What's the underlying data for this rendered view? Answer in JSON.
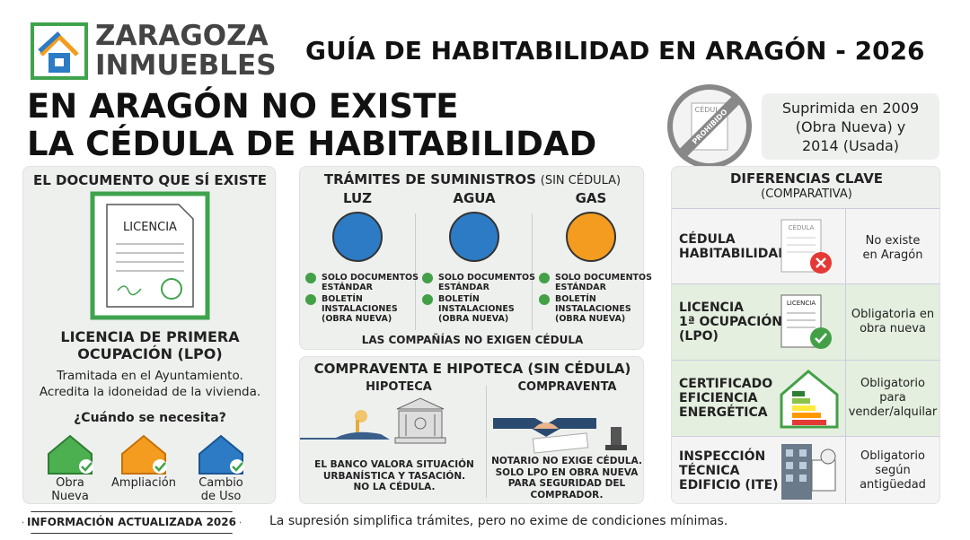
{
  "header": {
    "logo": [
      "ZARAGOZA",
      "INMUEBLES"
    ],
    "title": "GUÍA DE HABITABILIDAD EN ARAGÓN - 2026"
  },
  "headline": [
    "EN ARAGÓN NO EXISTE",
    "LA CÉDULA DE HABITABILIDAD"
  ],
  "stamp": {
    "doc": "CÉDULA",
    "label": "PROHIBIDO"
  },
  "note": [
    "Suprimida en 2009",
    "(Obra Nueva) y",
    "2014 (Usada)"
  ],
  "document_panel": {
    "title": "EL DOCUMENTO QUE SÍ EXISTE",
    "doc_label": "LICENCIA",
    "name": [
      "LICENCIA DE PRIMERA",
      "OCUPACIÓN (LPO)"
    ],
    "description": [
      "Tramitada en el Ayuntamiento.",
      "Acredita la idoneidad de la vivienda."
    ],
    "question": "¿Cuándo se necesita?",
    "cases": [
      [
        "Obra",
        "Nueva"
      ],
      [
        "Ampliación"
      ],
      [
        "Cambio",
        "de Uso"
      ]
    ]
  },
  "utilities": {
    "title": "TRÁMITES DE SUMINISTROS",
    "title_note": "(SIN CÉDULA)",
    "items": [
      {
        "name": "LUZ",
        "checks": [
          [
            "SOLO DOCUMENTOS",
            "ESTÁNDAR"
          ],
          [
            "BOLETÍN",
            "INSTALACIONES",
            "(OBRA NUEVA)"
          ]
        ]
      },
      {
        "name": "AGUA",
        "checks": [
          [
            "SOLO DOCUMENTOS",
            "ESTÁNDAR"
          ],
          [
            "BOLETÍN",
            "INSTALACIONES",
            "(OBRA NUEVA)"
          ]
        ]
      },
      {
        "name": "GAS",
        "checks": [
          [
            "SOLO DOCUMENTOS",
            "ESTÁNDAR"
          ],
          [
            "BOLETÍN",
            "INSTALACIONES",
            "(OBRA NUEVA)"
          ]
        ]
      }
    ],
    "footer": "LAS COMPAÑÍAS NO EXIGEN CÉDULA"
  },
  "sales": {
    "title": "COMPRAVENTA E HIPOTECA (SIN CÉDULA)",
    "columns": [
      {
        "name": "HIPOTECA",
        "text": [
          "EL BANCO VALORA SITUACIÓN",
          "URBANÍSTICA Y TASACIÓN.",
          "NO LA CÉDULA."
        ]
      },
      {
        "name": "COMPRAVENTA",
        "text": [
          "NOTARIO NO EXIGE CÉDULA.",
          "SOLO LPO EN OBRA NUEVA",
          "PARA SEGURIDAD DEL",
          "COMPRADOR."
        ]
      }
    ]
  },
  "differences": {
    "title": "DIFERENCIAS CLAVE",
    "subtitle": "(COMPARATIVA)",
    "rows": [
      {
        "name": [
          "CÉDULA",
          "HABITABILIDAD"
        ],
        "icon_label": "CÉDULA",
        "status": [
          "No existe",
          "en Aragón"
        ]
      },
      {
        "name": [
          "LICENCIA",
          "1ª OCUPACIÓN",
          "(LPO)"
        ],
        "icon_label": "LICENCIA",
        "status": [
          "Obligatoria en",
          "obra nueva"
        ]
      },
      {
        "name": [
          "CERTIFICADO",
          "EFICIENCIA",
          "ENERGÉTICA"
        ],
        "status": [
          "Obligatorio",
          "para",
          "vender/alquilar"
        ]
      },
      {
        "name": [
          "INSPECCIÓN",
          "TÉCNICA",
          "EDIFICIO (ITE)"
        ],
        "status": [
          "Obligatorio",
          "según",
          "antigüedad"
        ]
      }
    ]
  },
  "footer": {
    "badge": "INFORMACIÓN ACTUALIZADA 2026",
    "note": "La supresión simplifica trámites, pero no exime de condiciones mínimas."
  }
}
